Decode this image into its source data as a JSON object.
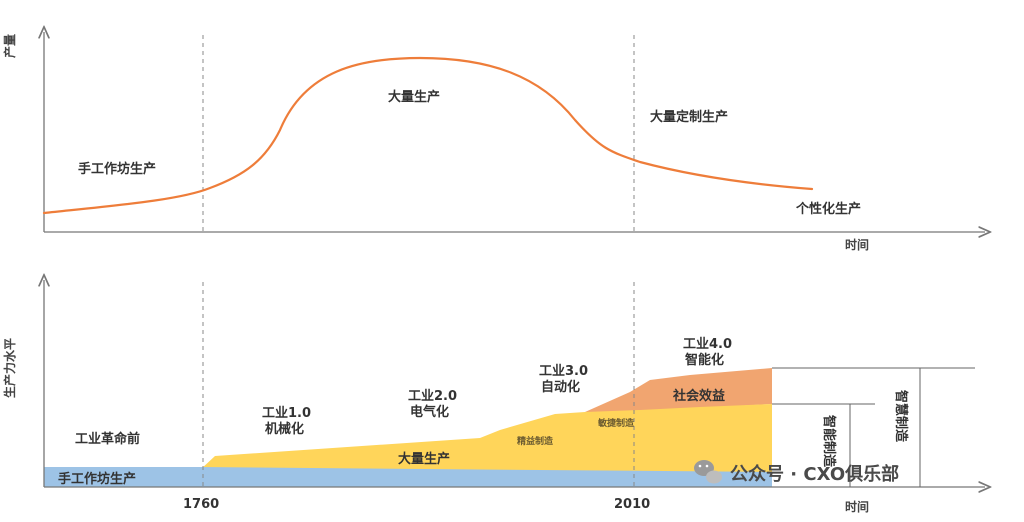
{
  "top": {
    "y_axis": "产量",
    "x_axis": "时间",
    "labels": {
      "workshop": "手工作坊生产",
      "mass": "大量生产",
      "customized": "大量定制生产",
      "personalized": "个性化生产"
    }
  },
  "bottom": {
    "y_axis": "生产力水平",
    "x_axis": "时间",
    "years": [
      "1760",
      "2010"
    ],
    "eras": {
      "pre": "工业革命前",
      "i1": {
        "title": "工业1.0",
        "sub": "机械化"
      },
      "i2": {
        "title": "工业2.0",
        "sub": "电气化"
      },
      "i3": {
        "title": "工业3.0",
        "sub": "自动化"
      },
      "i4": {
        "title": "工业4.0",
        "sub": "智能化"
      }
    },
    "bands": {
      "workshop": "手工作坊生产",
      "mass": "大量生产",
      "social": "社会效益",
      "lean": "精益制造",
      "agile": "敏捷制造"
    },
    "brackets": {
      "smart_manufacturing": "智能制造",
      "wisdom_manufacturing": "智慧制造"
    }
  },
  "watermark": "公众号 · CXO俱乐部",
  "colors": {
    "curve": "#ee7d3a",
    "blue": "#9dc3e6",
    "yellow": "#ffd55a",
    "orange": "#f1a570"
  }
}
